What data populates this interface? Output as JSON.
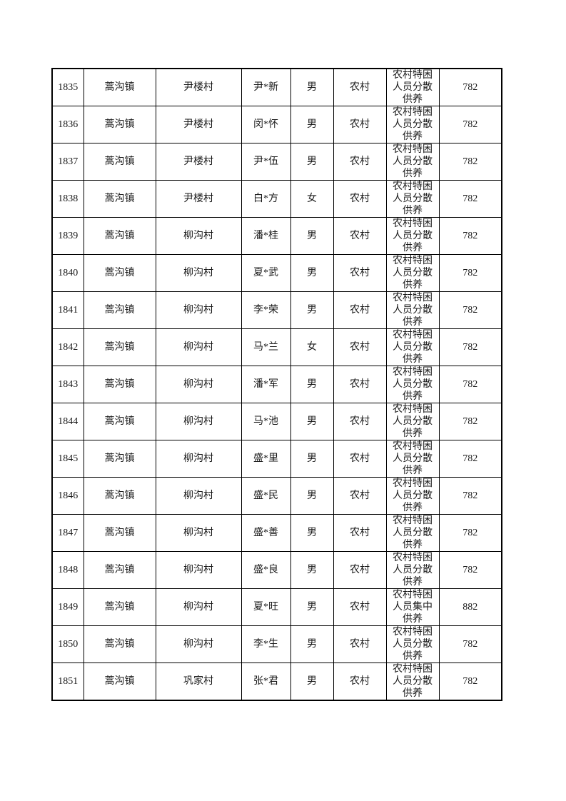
{
  "page": {
    "background_color": "#ffffff",
    "text_color": "#1a1a1a",
    "border_color": "#000000"
  },
  "table": {
    "column_keys": [
      "id",
      "town",
      "village",
      "name",
      "gender",
      "area",
      "category",
      "amount"
    ],
    "rows": [
      {
        "id": "1835",
        "town": "蒿沟镇",
        "village": "尹楼村",
        "name": "尹*新",
        "gender": "男",
        "area": "农村",
        "category": "农村特困人员分散供养",
        "amount": "782"
      },
      {
        "id": "1836",
        "town": "蒿沟镇",
        "village": "尹楼村",
        "name": "闵*怀",
        "gender": "男",
        "area": "农村",
        "category": "农村特困人员分散供养",
        "amount": "782"
      },
      {
        "id": "1837",
        "town": "蒿沟镇",
        "village": "尹楼村",
        "name": "尹*伍",
        "gender": "男",
        "area": "农村",
        "category": "农村特困人员分散供养",
        "amount": "782"
      },
      {
        "id": "1838",
        "town": "蒿沟镇",
        "village": "尹楼村",
        "name": "白*方",
        "gender": "女",
        "area": "农村",
        "category": "农村特困人员分散供养",
        "amount": "782"
      },
      {
        "id": "1839",
        "town": "蒿沟镇",
        "village": "柳沟村",
        "name": "潘*桂",
        "gender": "男",
        "area": "农村",
        "category": "农村特困人员分散供养",
        "amount": "782"
      },
      {
        "id": "1840",
        "town": "蒿沟镇",
        "village": "柳沟村",
        "name": "夏*武",
        "gender": "男",
        "area": "农村",
        "category": "农村特困人员分散供养",
        "amount": "782"
      },
      {
        "id": "1841",
        "town": "蒿沟镇",
        "village": "柳沟村",
        "name": "李*荣",
        "gender": "男",
        "area": "农村",
        "category": "农村特困人员分散供养",
        "amount": "782"
      },
      {
        "id": "1842",
        "town": "蒿沟镇",
        "village": "柳沟村",
        "name": "马*兰",
        "gender": "女",
        "area": "农村",
        "category": "农村特困人员分散供养",
        "amount": "782"
      },
      {
        "id": "1843",
        "town": "蒿沟镇",
        "village": "柳沟村",
        "name": "潘*军",
        "gender": "男",
        "area": "农村",
        "category": "农村特困人员分散供养",
        "amount": "782"
      },
      {
        "id": "1844",
        "town": "蒿沟镇",
        "village": "柳沟村",
        "name": "马*池",
        "gender": "男",
        "area": "农村",
        "category": "农村特困人员分散供养",
        "amount": "782"
      },
      {
        "id": "1845",
        "town": "蒿沟镇",
        "village": "柳沟村",
        "name": "盛*里",
        "gender": "男",
        "area": "农村",
        "category": "农村特困人员分散供养",
        "amount": "782"
      },
      {
        "id": "1846",
        "town": "蒿沟镇",
        "village": "柳沟村",
        "name": "盛*民",
        "gender": "男",
        "area": "农村",
        "category": "农村特困人员分散供养",
        "amount": "782"
      },
      {
        "id": "1847",
        "town": "蒿沟镇",
        "village": "柳沟村",
        "name": "盛*善",
        "gender": "男",
        "area": "农村",
        "category": "农村特困人员分散供养",
        "amount": "782"
      },
      {
        "id": "1848",
        "town": "蒿沟镇",
        "village": "柳沟村",
        "name": "盛*良",
        "gender": "男",
        "area": "农村",
        "category": "农村特困人员分散供养",
        "amount": "782"
      },
      {
        "id": "1849",
        "town": "蒿沟镇",
        "village": "柳沟村",
        "name": "夏*旺",
        "gender": "男",
        "area": "农村",
        "category": "农村特困人员集中供养",
        "amount": "882"
      },
      {
        "id": "1850",
        "town": "蒿沟镇",
        "village": "柳沟村",
        "name": "李*生",
        "gender": "男",
        "area": "农村",
        "category": "农村特困人员分散供养",
        "amount": "782"
      },
      {
        "id": "1851",
        "town": "蒿沟镇",
        "village": "巩家村",
        "name": "张*君",
        "gender": "男",
        "area": "农村",
        "category": "农村特困人员分散供养",
        "amount": "782"
      }
    ]
  }
}
